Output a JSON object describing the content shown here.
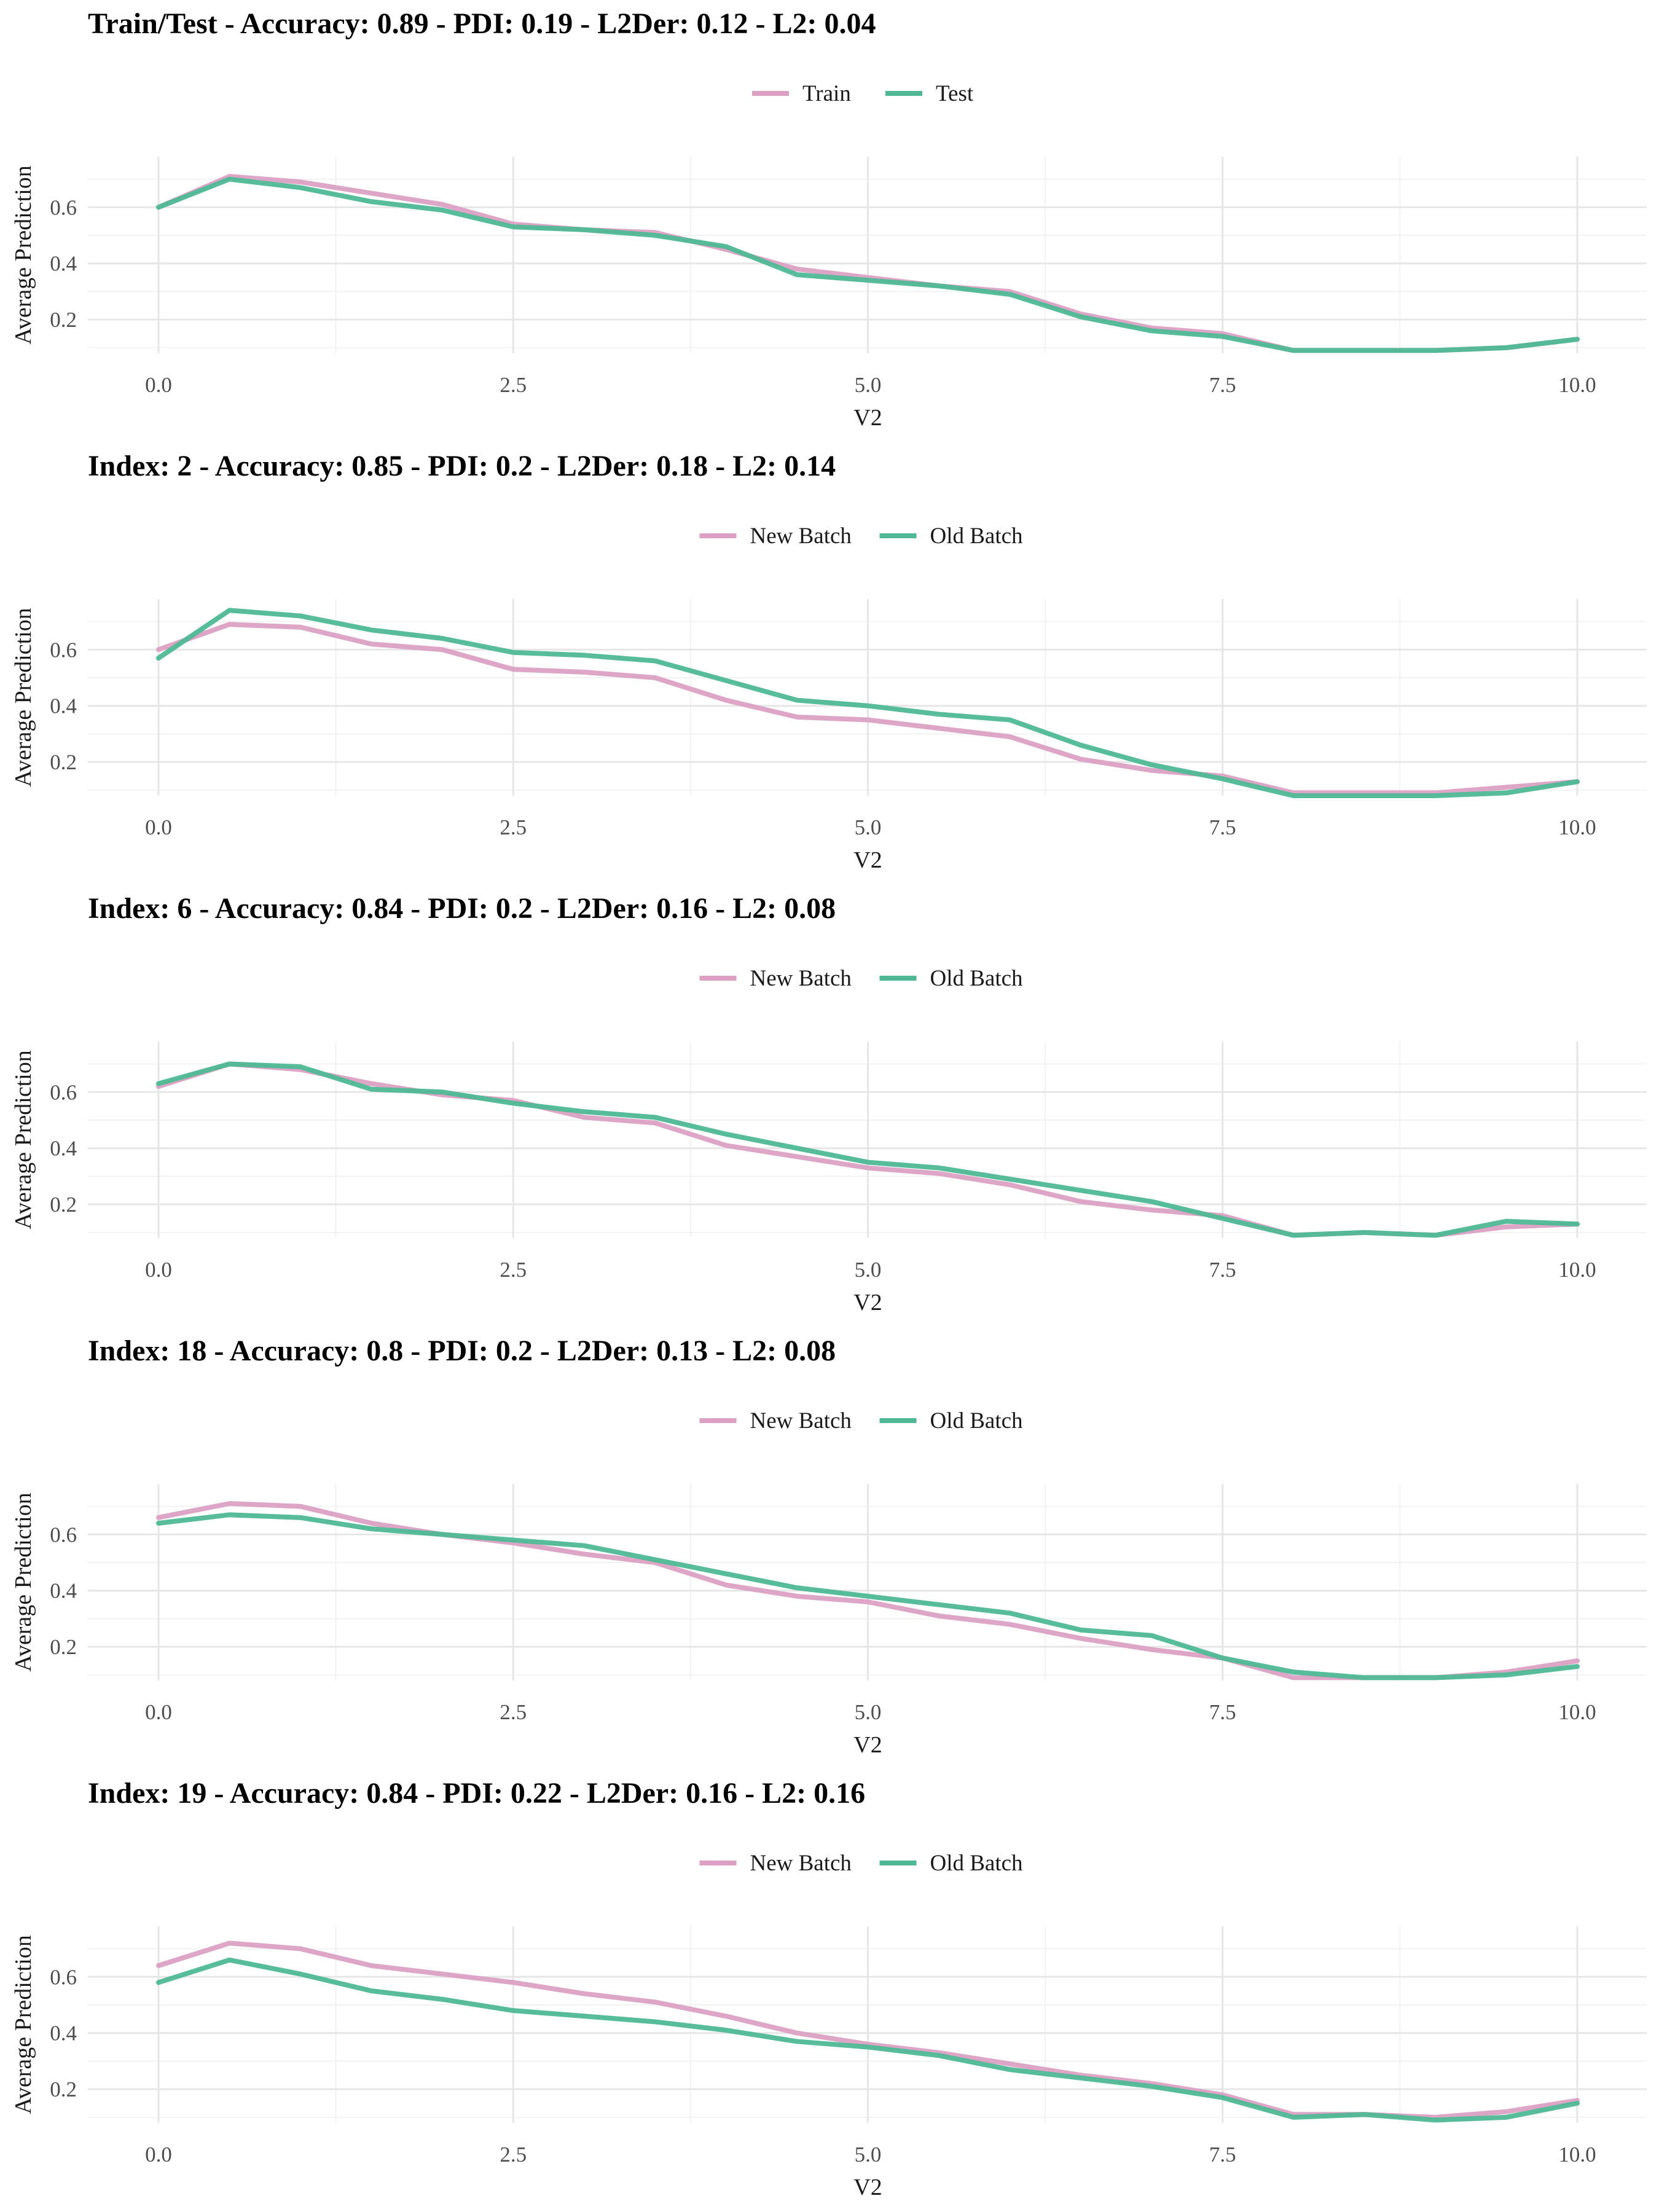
{
  "colors": {
    "series_a": "#DBA0C3",
    "series_b": "#4DB893",
    "grid_major": "#E6E6E6",
    "grid_minor": "#F2F2F2"
  },
  "chart_data": [
    {
      "type": "line",
      "title": "Train/Test - Accuracy: 0.89 - PDI: 0.19 - L2Der: 0.12 - L2: 0.04",
      "xlabel": "V2",
      "ylabel": "Average Prediction",
      "xlim": [
        0,
        10
      ],
      "ylim": [
        0.08,
        0.78
      ],
      "xticks": [
        0.0,
        2.5,
        5.0,
        7.5,
        10.0
      ],
      "xtick_labels": [
        "0.0",
        "2.5",
        "5.0",
        "7.5",
        "10.0"
      ],
      "yticks": [
        0.2,
        0.4,
        0.6
      ],
      "ytick_labels": [
        "0.2",
        "0.4",
        "0.6"
      ],
      "grid": true,
      "legend_position": "top",
      "series": [
        {
          "name": "Train",
          "x": [
            0,
            0.5,
            1,
            1.5,
            2,
            2.5,
            3,
            3.5,
            4,
            4.5,
            5,
            5.5,
            6,
            6.5,
            7,
            7.5,
            8,
            8.5,
            9,
            9.5,
            10
          ],
          "values": [
            0.6,
            0.71,
            0.69,
            0.65,
            0.61,
            0.54,
            0.52,
            0.51,
            0.45,
            0.38,
            0.35,
            0.32,
            0.3,
            0.22,
            0.17,
            0.15,
            0.09,
            0.09,
            0.09,
            0.1,
            0.13
          ]
        },
        {
          "name": "Test",
          "x": [
            0,
            0.5,
            1,
            1.5,
            2,
            2.5,
            3,
            3.5,
            4,
            4.5,
            5,
            5.5,
            6,
            6.5,
            7,
            7.5,
            8,
            8.5,
            9,
            9.5,
            10
          ],
          "values": [
            0.6,
            0.7,
            0.67,
            0.62,
            0.59,
            0.53,
            0.52,
            0.5,
            0.46,
            0.36,
            0.34,
            0.32,
            0.29,
            0.21,
            0.16,
            0.14,
            0.09,
            0.09,
            0.09,
            0.1,
            0.13
          ]
        }
      ]
    },
    {
      "type": "line",
      "title": "Index: 2 - Accuracy: 0.85 - PDI: 0.2 - L2Der: 0.18 - L2: 0.14",
      "xlabel": "V2",
      "ylabel": "Average Prediction",
      "xlim": [
        0,
        10
      ],
      "ylim": [
        0.08,
        0.78
      ],
      "xticks": [
        0.0,
        2.5,
        5.0,
        7.5,
        10.0
      ],
      "xtick_labels": [
        "0.0",
        "2.5",
        "5.0",
        "7.5",
        "10.0"
      ],
      "yticks": [
        0.2,
        0.4,
        0.6
      ],
      "ytick_labels": [
        "0.2",
        "0.4",
        "0.6"
      ],
      "grid": true,
      "legend_position": "top",
      "series": [
        {
          "name": "New Batch",
          "x": [
            0,
            0.5,
            1,
            1.5,
            2,
            2.5,
            3,
            3.5,
            4,
            4.5,
            5,
            5.5,
            6,
            6.5,
            7,
            7.5,
            8,
            8.5,
            9,
            9.5,
            10
          ],
          "values": [
            0.6,
            0.69,
            0.68,
            0.62,
            0.6,
            0.53,
            0.52,
            0.5,
            0.42,
            0.36,
            0.35,
            0.32,
            0.29,
            0.21,
            0.17,
            0.15,
            0.09,
            0.09,
            0.09,
            0.11,
            0.13
          ]
        },
        {
          "name": "Old Batch",
          "x": [
            0,
            0.5,
            1,
            1.5,
            2,
            2.5,
            3,
            3.5,
            4,
            4.5,
            5,
            5.5,
            6,
            6.5,
            7,
            7.5,
            8,
            8.5,
            9,
            9.5,
            10
          ],
          "values": [
            0.57,
            0.74,
            0.72,
            0.67,
            0.64,
            0.59,
            0.58,
            0.56,
            0.49,
            0.42,
            0.4,
            0.37,
            0.35,
            0.26,
            0.19,
            0.14,
            0.08,
            0.08,
            0.08,
            0.09,
            0.13
          ]
        }
      ]
    },
    {
      "type": "line",
      "title": "Index: 6 - Accuracy: 0.84 - PDI: 0.2 - L2Der: 0.16 - L2: 0.08",
      "xlabel": "V2",
      "ylabel": "Average Prediction",
      "xlim": [
        0,
        10
      ],
      "ylim": [
        0.08,
        0.78
      ],
      "xticks": [
        0.0,
        2.5,
        5.0,
        7.5,
        10.0
      ],
      "xtick_labels": [
        "0.0",
        "2.5",
        "5.0",
        "7.5",
        "10.0"
      ],
      "yticks": [
        0.2,
        0.4,
        0.6
      ],
      "ytick_labels": [
        "0.2",
        "0.4",
        "0.6"
      ],
      "grid": true,
      "legend_position": "top",
      "series": [
        {
          "name": "New Batch",
          "x": [
            0,
            0.5,
            1,
            1.5,
            2,
            2.5,
            3,
            3.5,
            4,
            4.5,
            5,
            5.5,
            6,
            6.5,
            7,
            7.5,
            8,
            8.5,
            9,
            9.5,
            10
          ],
          "values": [
            0.62,
            0.7,
            0.68,
            0.63,
            0.59,
            0.57,
            0.51,
            0.49,
            0.41,
            0.37,
            0.33,
            0.31,
            0.27,
            0.21,
            0.18,
            0.16,
            0.09,
            0.1,
            0.09,
            0.12,
            0.13
          ]
        },
        {
          "name": "Old Batch",
          "x": [
            0,
            0.5,
            1,
            1.5,
            2,
            2.5,
            3,
            3.5,
            4,
            4.5,
            5,
            5.5,
            6,
            6.5,
            7,
            7.5,
            8,
            8.5,
            9,
            9.5,
            10
          ],
          "values": [
            0.63,
            0.7,
            0.69,
            0.61,
            0.6,
            0.56,
            0.53,
            0.51,
            0.45,
            0.4,
            0.35,
            0.33,
            0.29,
            0.25,
            0.21,
            0.15,
            0.09,
            0.1,
            0.09,
            0.14,
            0.13
          ]
        }
      ]
    },
    {
      "type": "line",
      "title": "Index: 18 - Accuracy: 0.8 - PDI: 0.2 - L2Der: 0.13 - L2: 0.08",
      "xlabel": "V2",
      "ylabel": "Average Prediction",
      "xlim": [
        0,
        10
      ],
      "ylim": [
        0.08,
        0.78
      ],
      "xticks": [
        0.0,
        2.5,
        5.0,
        7.5,
        10.0
      ],
      "xtick_labels": [
        "0.0",
        "2.5",
        "5.0",
        "7.5",
        "10.0"
      ],
      "yticks": [
        0.2,
        0.4,
        0.6
      ],
      "ytick_labels": [
        "0.2",
        "0.4",
        "0.6"
      ],
      "grid": true,
      "legend_position": "top",
      "series": [
        {
          "name": "New Batch",
          "x": [
            0,
            0.5,
            1,
            1.5,
            2,
            2.5,
            3,
            3.5,
            4,
            4.5,
            5,
            5.5,
            6,
            6.5,
            7,
            7.5,
            8,
            8.5,
            9,
            9.5,
            10
          ],
          "values": [
            0.66,
            0.71,
            0.7,
            0.64,
            0.6,
            0.57,
            0.53,
            0.5,
            0.42,
            0.38,
            0.36,
            0.31,
            0.28,
            0.23,
            0.19,
            0.16,
            0.09,
            0.09,
            0.09,
            0.11,
            0.15
          ]
        },
        {
          "name": "Old Batch",
          "x": [
            0,
            0.5,
            1,
            1.5,
            2,
            2.5,
            3,
            3.5,
            4,
            4.5,
            5,
            5.5,
            6,
            6.5,
            7,
            7.5,
            8,
            8.5,
            9,
            9.5,
            10
          ],
          "values": [
            0.64,
            0.67,
            0.66,
            0.62,
            0.6,
            0.58,
            0.56,
            0.51,
            0.46,
            0.41,
            0.38,
            0.35,
            0.32,
            0.26,
            0.24,
            0.16,
            0.11,
            0.09,
            0.09,
            0.1,
            0.13
          ]
        }
      ]
    },
    {
      "type": "line",
      "title": "Index: 19 - Accuracy: 0.84 - PDI: 0.22 - L2Der: 0.16 - L2: 0.16",
      "xlabel": "V2",
      "ylabel": "Average Prediction",
      "xlim": [
        0,
        10
      ],
      "ylim": [
        0.08,
        0.78
      ],
      "xticks": [
        0.0,
        2.5,
        5.0,
        7.5,
        10.0
      ],
      "xtick_labels": [
        "0.0",
        "2.5",
        "5.0",
        "7.5",
        "10.0"
      ],
      "yticks": [
        0.2,
        0.4,
        0.6
      ],
      "ytick_labels": [
        "0.2",
        "0.4",
        "0.6"
      ],
      "grid": true,
      "legend_position": "top",
      "series": [
        {
          "name": "New Batch",
          "x": [
            0,
            0.5,
            1,
            1.5,
            2,
            2.5,
            3,
            3.5,
            4,
            4.5,
            5,
            5.5,
            6,
            6.5,
            7,
            7.5,
            8,
            8.5,
            9,
            9.5,
            10
          ],
          "values": [
            0.64,
            0.72,
            0.7,
            0.64,
            0.61,
            0.58,
            0.54,
            0.51,
            0.46,
            0.4,
            0.36,
            0.33,
            0.29,
            0.25,
            0.22,
            0.18,
            0.11,
            0.11,
            0.1,
            0.12,
            0.16
          ]
        },
        {
          "name": "Old Batch",
          "x": [
            0,
            0.5,
            1,
            1.5,
            2,
            2.5,
            3,
            3.5,
            4,
            4.5,
            5,
            5.5,
            6,
            6.5,
            7,
            7.5,
            8,
            8.5,
            9,
            9.5,
            10
          ],
          "values": [
            0.58,
            0.66,
            0.61,
            0.55,
            0.52,
            0.48,
            0.46,
            0.44,
            0.41,
            0.37,
            0.35,
            0.32,
            0.27,
            0.24,
            0.21,
            0.17,
            0.1,
            0.11,
            0.09,
            0.1,
            0.15
          ]
        }
      ]
    }
  ]
}
